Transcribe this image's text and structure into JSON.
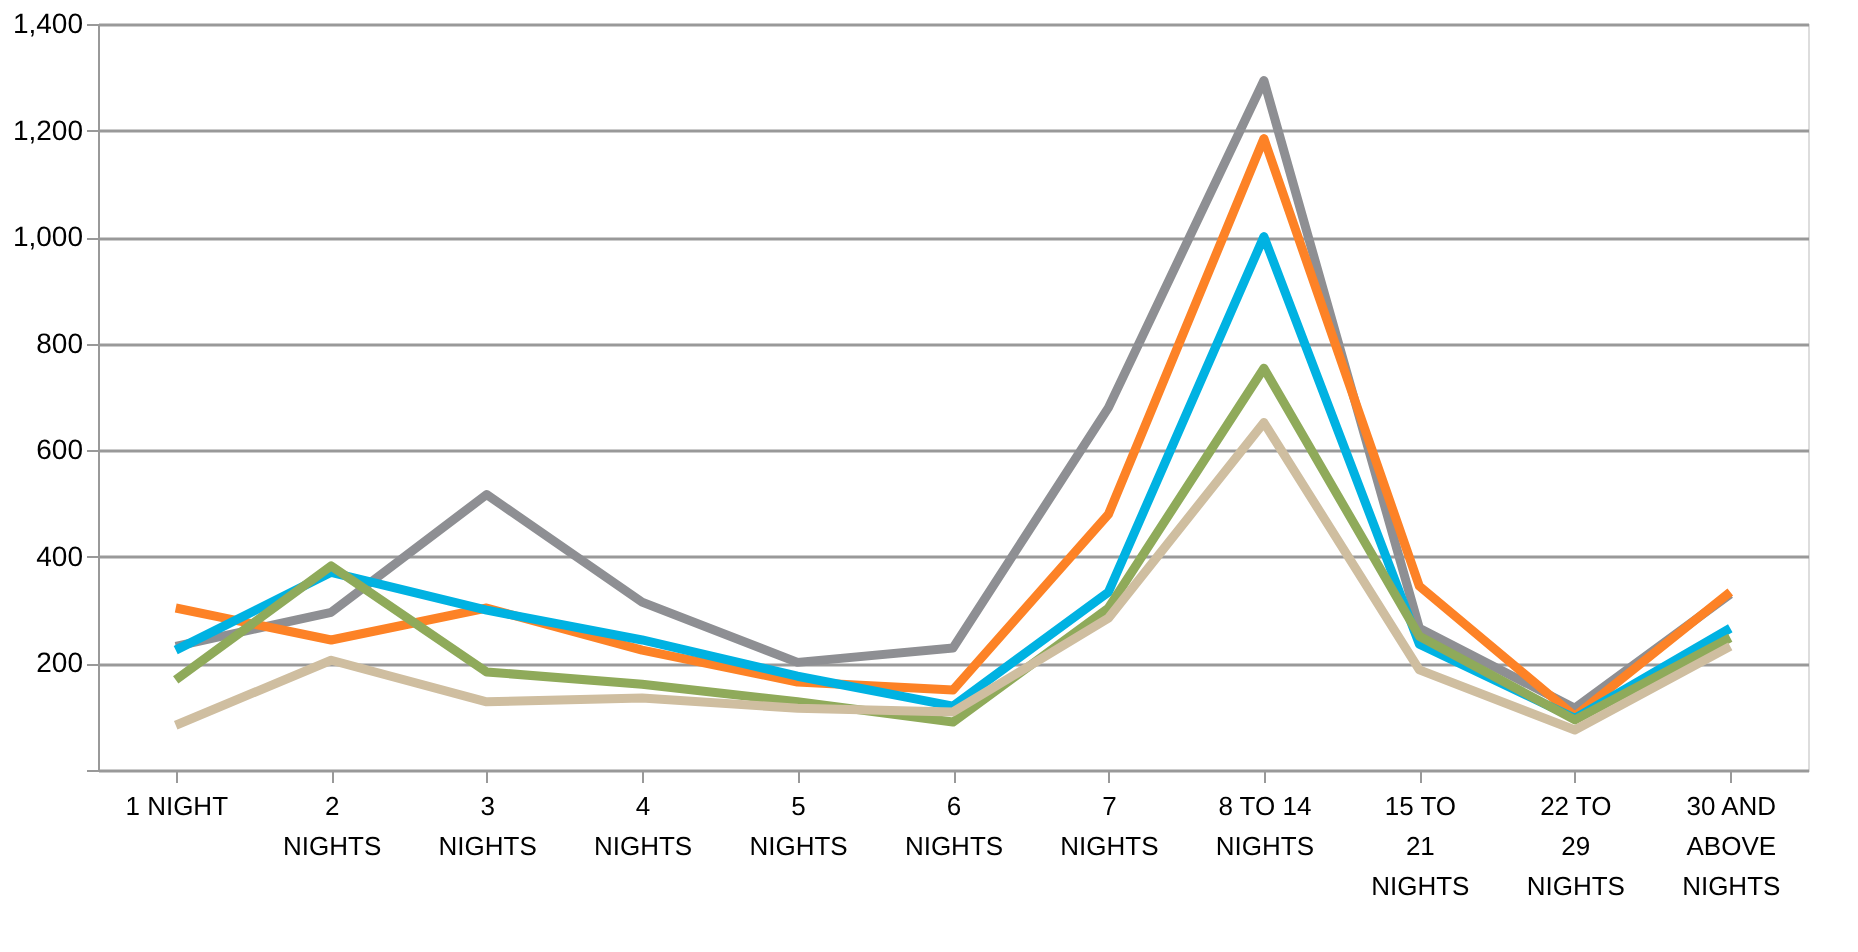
{
  "chart_data": {
    "type": "line",
    "categories": [
      "1 NIGHT",
      "2 NIGHTS",
      "3 NIGHTS",
      "4 NIGHTS",
      "5 NIGHTS",
      "6 NIGHTS",
      "7 NIGHTS",
      "8 TO 14 NIGHTS",
      "15 TO 21 NIGHTS",
      "22 TO 29 NIGHTS",
      "30 AND ABOVE NIGHTS"
    ],
    "series": [
      {
        "color": "#8e8f93",
        "values": [
          232,
          296,
          517,
          315,
          202,
          229,
          680,
          1294,
          266,
          116,
          330
        ]
      },
      {
        "color": "#fd8226",
        "values": [
          304,
          244,
          304,
          225,
          165,
          150,
          480,
          1185,
          345,
          101,
          334
        ]
      },
      {
        "color": "#00b2e2",
        "values": [
          225,
          371,
          300,
          244,
          176,
          120,
          334,
          1001,
          236,
          97,
          266
        ]
      },
      {
        "color": "#8faa5a",
        "values": [
          169,
          383,
          184,
          161,
          128,
          90,
          304,
          754,
          251,
          94,
          248
        ]
      },
      {
        "color": "#cfbea0",
        "values": [
          84,
          206,
          128,
          135,
          116,
          109,
          285,
          652,
          188,
          75,
          232
        ]
      }
    ],
    "ylim": [
      0,
      1400
    ],
    "yticks": [
      {
        "value": 0,
        "label": null
      },
      200,
      400,
      600,
      800,
      {
        "value": 1000,
        "label": "1,000"
      },
      {
        "value": 1200,
        "label": "1,200"
      },
      {
        "value": 1400,
        "label": "1,400"
      }
    ],
    "grid": "y",
    "legend": false,
    "marker": "none",
    "line_style": "solid"
  }
}
